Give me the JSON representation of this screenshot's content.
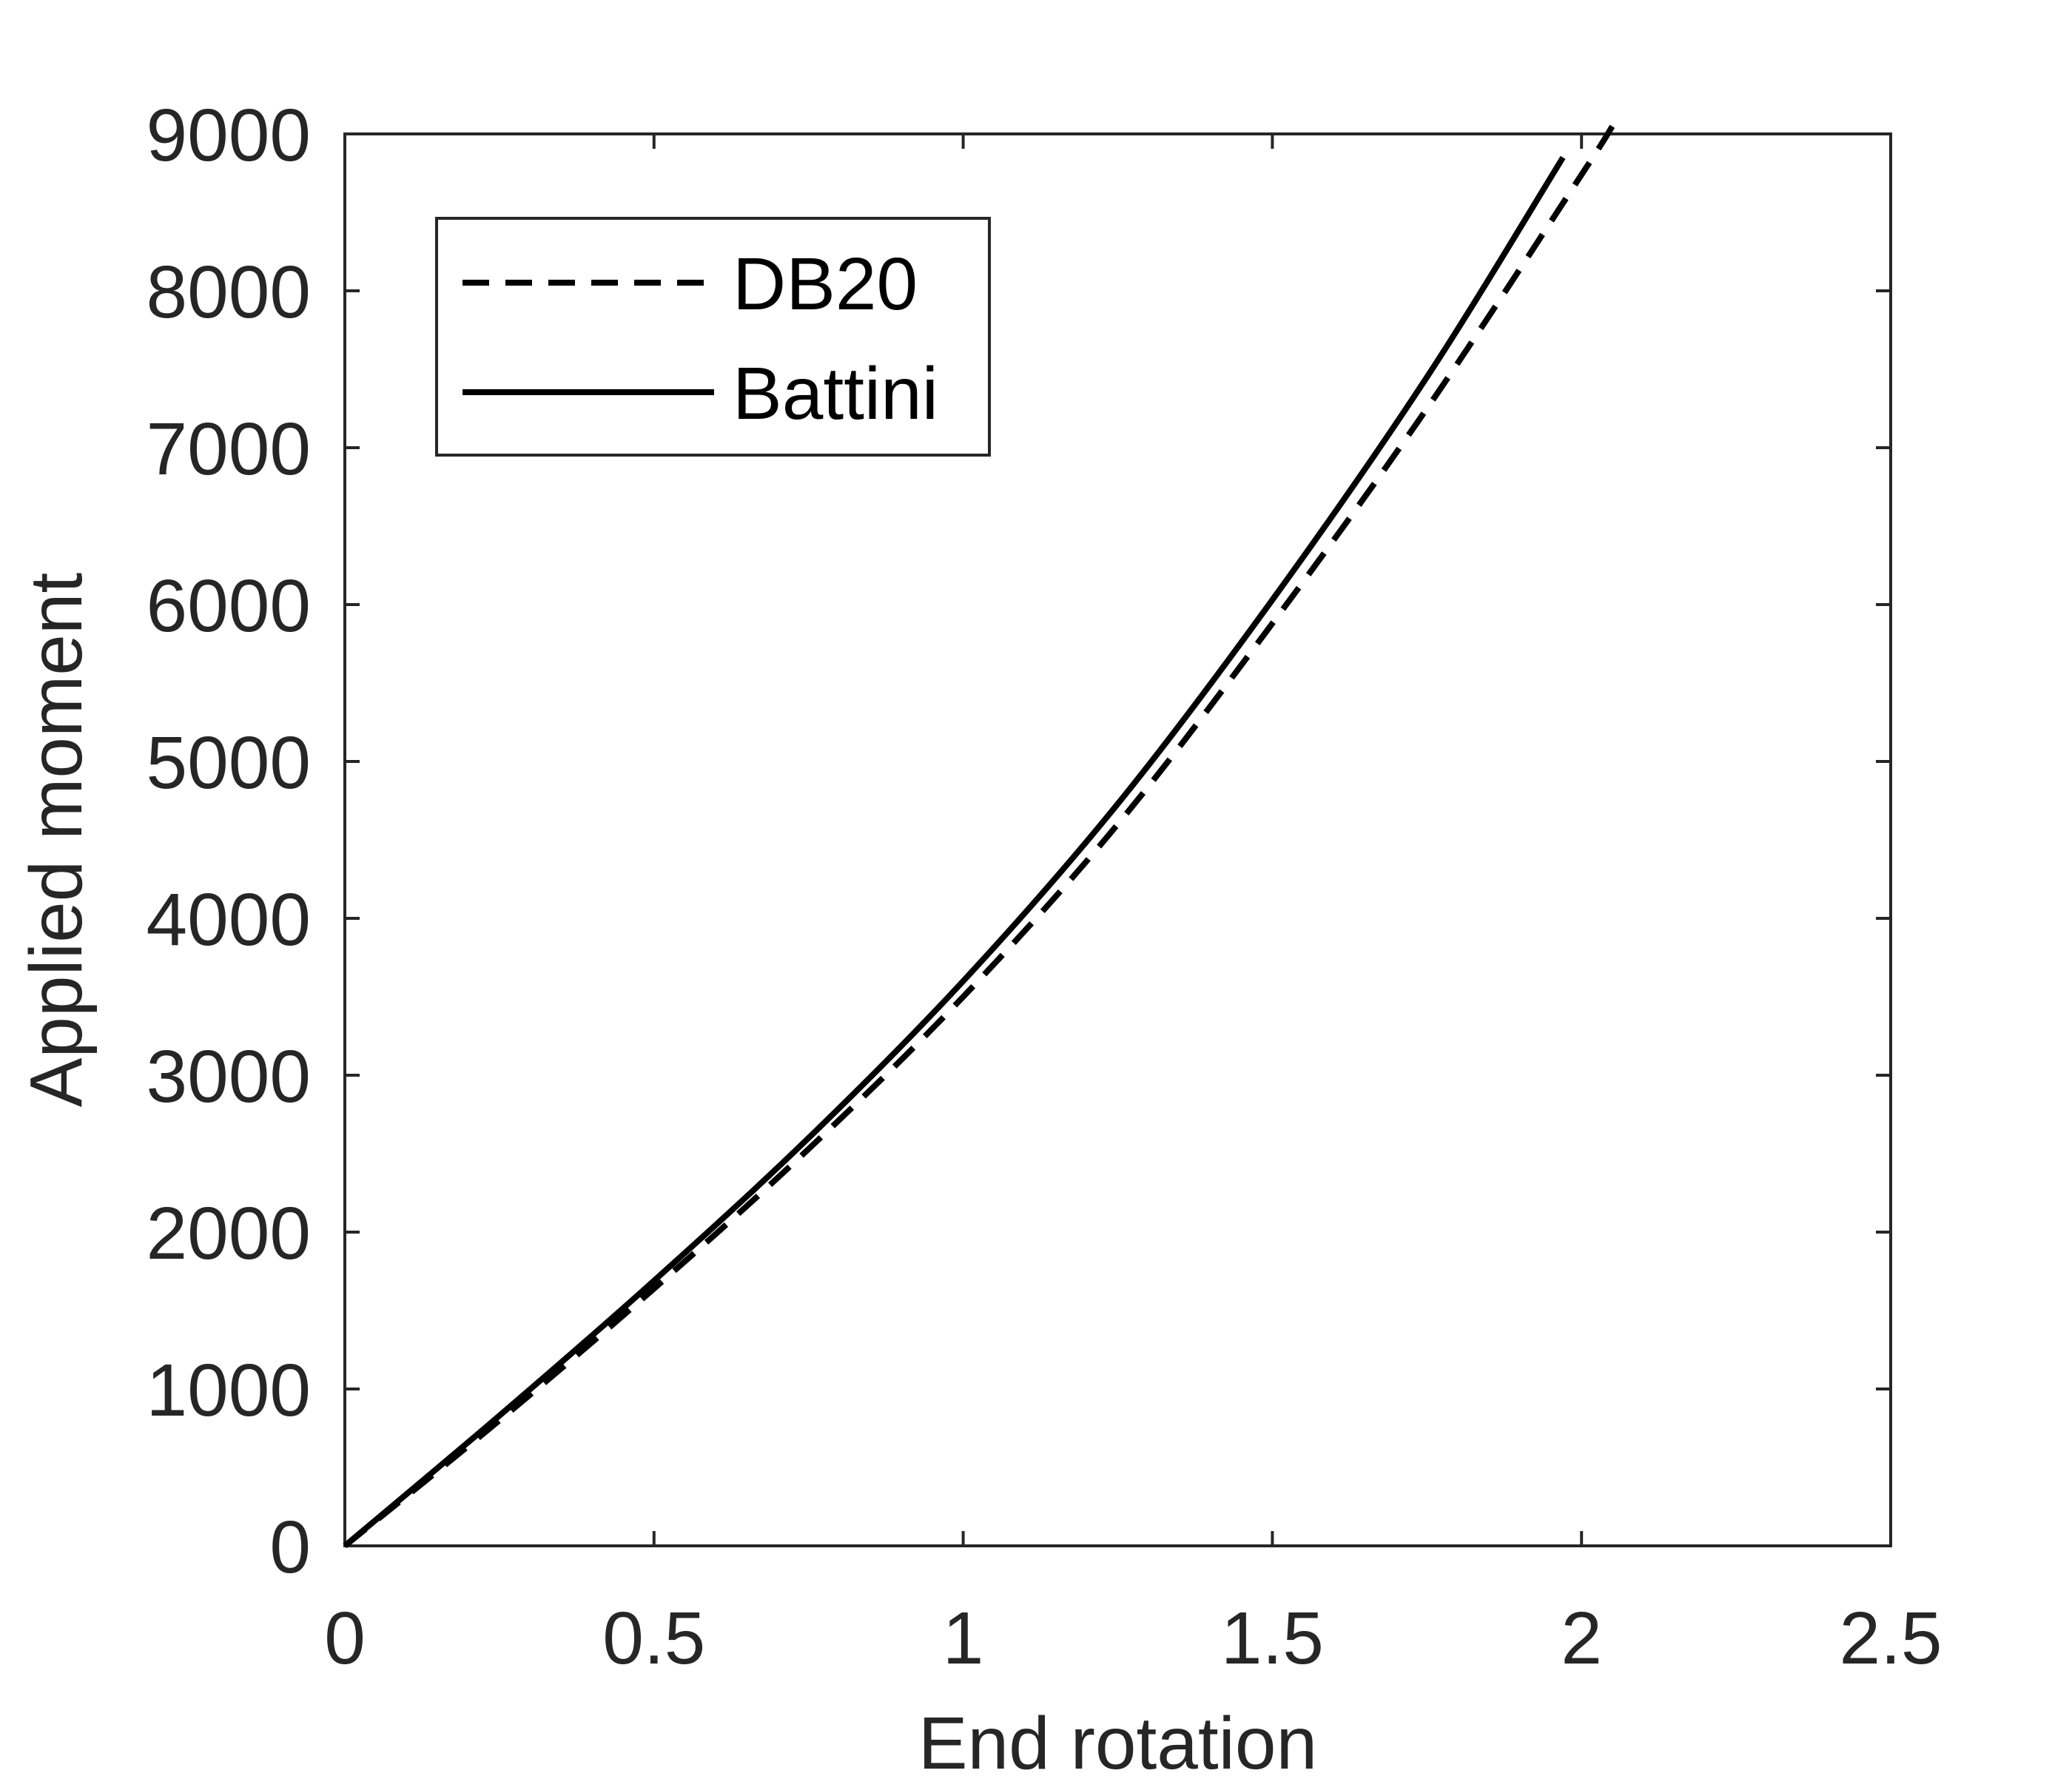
{
  "chart_data": {
    "type": "line",
    "title": "",
    "xlabel": "End rotation",
    "ylabel": "Applied moment",
    "xlim": [
      0,
      2.5
    ],
    "ylim": [
      0,
      9000
    ],
    "x_ticks": [
      0,
      0.5,
      1,
      1.5,
      2,
      2.5
    ],
    "x_tick_labels": [
      "0",
      "0.5",
      "1",
      "1.5",
      "2",
      "2.5"
    ],
    "y_ticks": [
      0,
      1000,
      2000,
      3000,
      4000,
      5000,
      6000,
      7000,
      8000,
      9000
    ],
    "y_tick_labels": [
      "0",
      "1000",
      "2000",
      "3000",
      "4000",
      "5000",
      "6000",
      "7000",
      "8000",
      "9000"
    ],
    "grid": false,
    "legend_position": "top-left",
    "series": [
      {
        "name": "DB20",
        "style": "dashed",
        "color": "#000000",
        "x": [
          0,
          0.25,
          0.5,
          0.75,
          1.0,
          1.25,
          1.5,
          1.75,
          2.0,
          2.05
        ],
        "y": [
          0,
          800,
          1640,
          2530,
          3500,
          4600,
          5880,
          7250,
          8740,
          9050
        ]
      },
      {
        "name": "Battini",
        "style": "solid",
        "color": "#000000",
        "x": [
          0,
          0.25,
          0.5,
          0.75,
          1.0,
          1.25,
          1.5,
          1.75,
          1.97
        ],
        "y": [
          0,
          830,
          1690,
          2600,
          3600,
          4730,
          6030,
          7450,
          8850
        ]
      }
    ]
  }
}
